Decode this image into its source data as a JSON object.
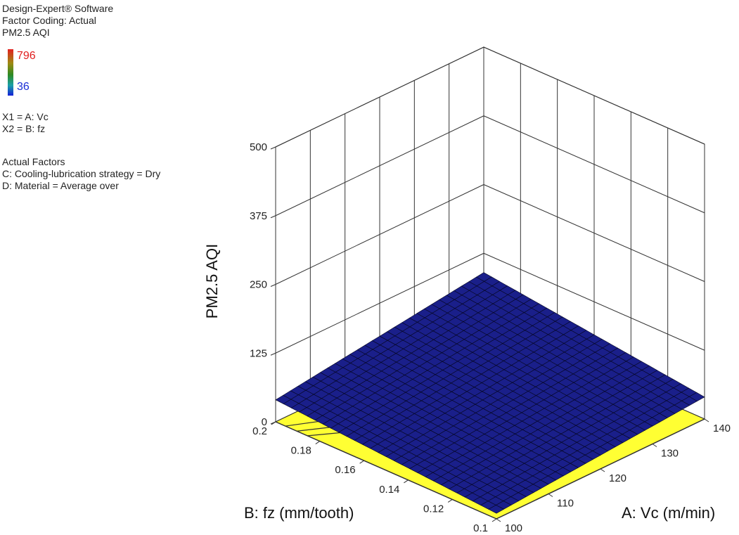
{
  "header": {
    "software": "Design-Expert® Software",
    "coding": "Factor Coding: Actual",
    "response": "PM2.5 AQI",
    "color_max": "796",
    "color_min": "36",
    "x1": "X1 = A: Vc",
    "x2": "X2 = B: fz",
    "actual_title": "Actual Factors",
    "actual_c": "C: Cooling-lubrication strategy = Dry",
    "actual_d": "D: Material = Average over"
  },
  "colors": {
    "surface": "#1a1f8a",
    "floor": "#ffff33",
    "high": "#e01e1e",
    "low": "#1a2ed6"
  },
  "chart_data": {
    "type": "surface",
    "zlabel": "PM2.5 AQI",
    "xlabel": "A: Vc (m/min)",
    "ylabel": "B: fz (mm/tooth)",
    "z_ticks": [
      "0",
      "125",
      "250",
      "375",
      "500"
    ],
    "x_ticks": [
      "100",
      "110",
      "120",
      "130",
      "140"
    ],
    "y_ticks": [
      "0.1",
      "0.12",
      "0.14",
      "0.16",
      "0.18",
      "0.2"
    ],
    "x_range": [
      100,
      140
    ],
    "y_range": [
      0.1,
      0.2
    ],
    "z_range": [
      0,
      500
    ],
    "surface_corners": [
      {
        "vc": 100,
        "fz": 0.2,
        "aqi": 40
      },
      {
        "vc": 140,
        "fz": 0.2,
        "aqi": 90
      },
      {
        "vc": 140,
        "fz": 0.1,
        "aqi": 40
      },
      {
        "vc": 100,
        "fz": 0.1,
        "aqi": 10
      }
    ]
  }
}
